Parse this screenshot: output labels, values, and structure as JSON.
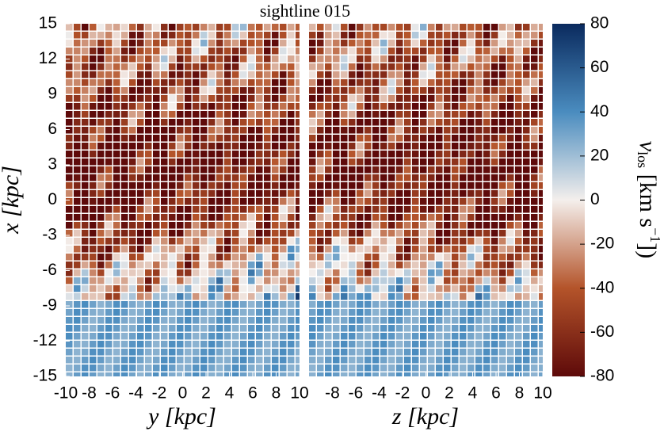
{
  "chart_data": [
    {
      "type": "heatmap",
      "title": "sightline 015",
      "xlabel": "y [kpc]",
      "ylabel": "x [kpc]",
      "xlim": [
        -10,
        10
      ],
      "xticks": [
        -10,
        -8,
        -6,
        -4,
        -2,
        0,
        2,
        4,
        6,
        8,
        10
      ],
      "ylim": [
        -15,
        15
      ],
      "yticks": [
        -15,
        -12,
        -9,
        -6,
        -3,
        0,
        3,
        6,
        9,
        12,
        15
      ]
    },
    {
      "type": "heatmap",
      "xlabel": "z [kpc]",
      "xlim": [
        -10,
        10
      ],
      "xticks": [
        -8,
        -6,
        -4,
        -2,
        0,
        2,
        4,
        6,
        8,
        10
      ],
      "ylim": [
        -15,
        15
      ]
    },
    {
      "type": "colorbar",
      "label": {
        "symbol": "v",
        "sub": "los",
        "unit": " [km s",
        "sup": "−1",
        "close": "])"
      },
      "clim": [
        -80,
        80
      ],
      "ticks": [
        -80,
        -60,
        -40,
        -20,
        0,
        20,
        40,
        60,
        80
      ]
    }
  ]
}
